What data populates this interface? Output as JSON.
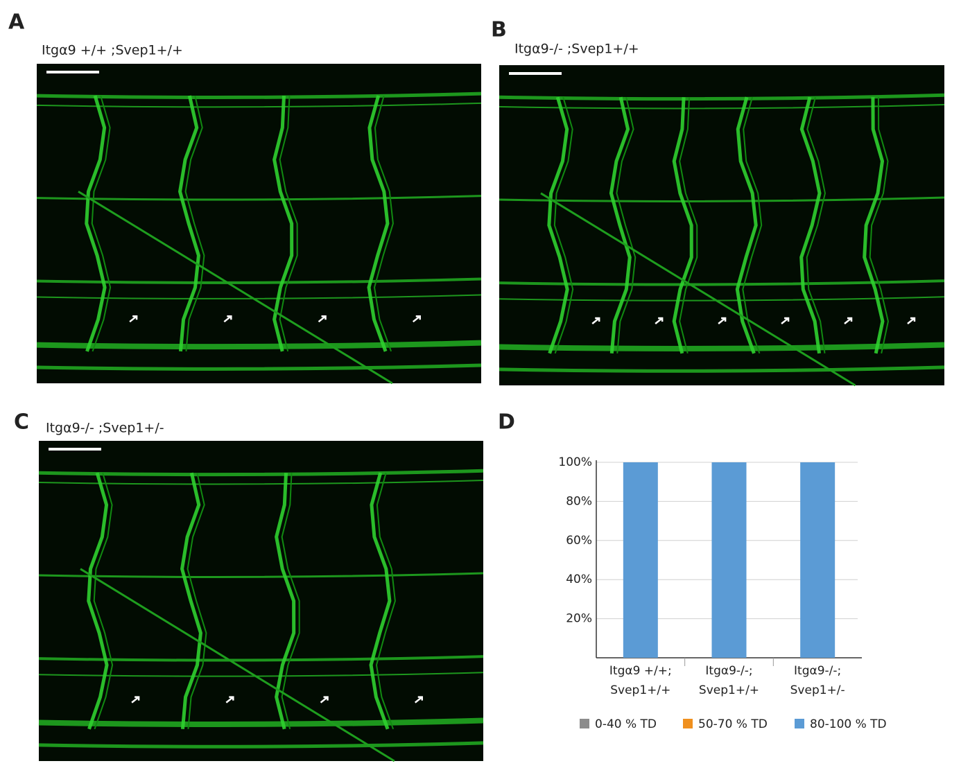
{
  "panels": [
    {
      "letter": "A",
      "title": "Itgα9 +/+ ;Svep1+/+"
    },
    {
      "letter": "B",
      "title": "Itgα9-/- ;Svep1+/+"
    },
    {
      "letter": "C",
      "title": "Itgα9-/- ;Svep1+/-"
    },
    {
      "letter": "D"
    }
  ],
  "chart_data": {
    "type": "stacked_bar",
    "categories": [
      [
        "Itgα9 +/+;",
        "Svep1+/+"
      ],
      [
        "Itgα9-/-;",
        "Svep1+/+"
      ],
      [
        "Itgα9-/-;",
        "Svep1+/-"
      ]
    ],
    "series": [
      {
        "name": "0-40 % TD",
        "color": "#8c8c8c",
        "values": [
          0,
          0,
          0
        ]
      },
      {
        "name": "50-70 % TD",
        "color": "#f0901e",
        "values": [
          0,
          0,
          0
        ]
      },
      {
        "name": "80-100 % TD",
        "color": "#5b9bd5",
        "values": [
          100,
          100,
          100
        ]
      }
    ],
    "ylim": [
      0,
      100
    ],
    "yticks": [
      {
        "value": 20,
        "label": "20%"
      },
      {
        "value": 40,
        "label": "40%"
      },
      {
        "value": 60,
        "label": "60%"
      },
      {
        "value": 80,
        "label": "80%"
      },
      {
        "value": 100,
        "label": "100%"
      }
    ],
    "grid": true,
    "legend": "bottom"
  }
}
